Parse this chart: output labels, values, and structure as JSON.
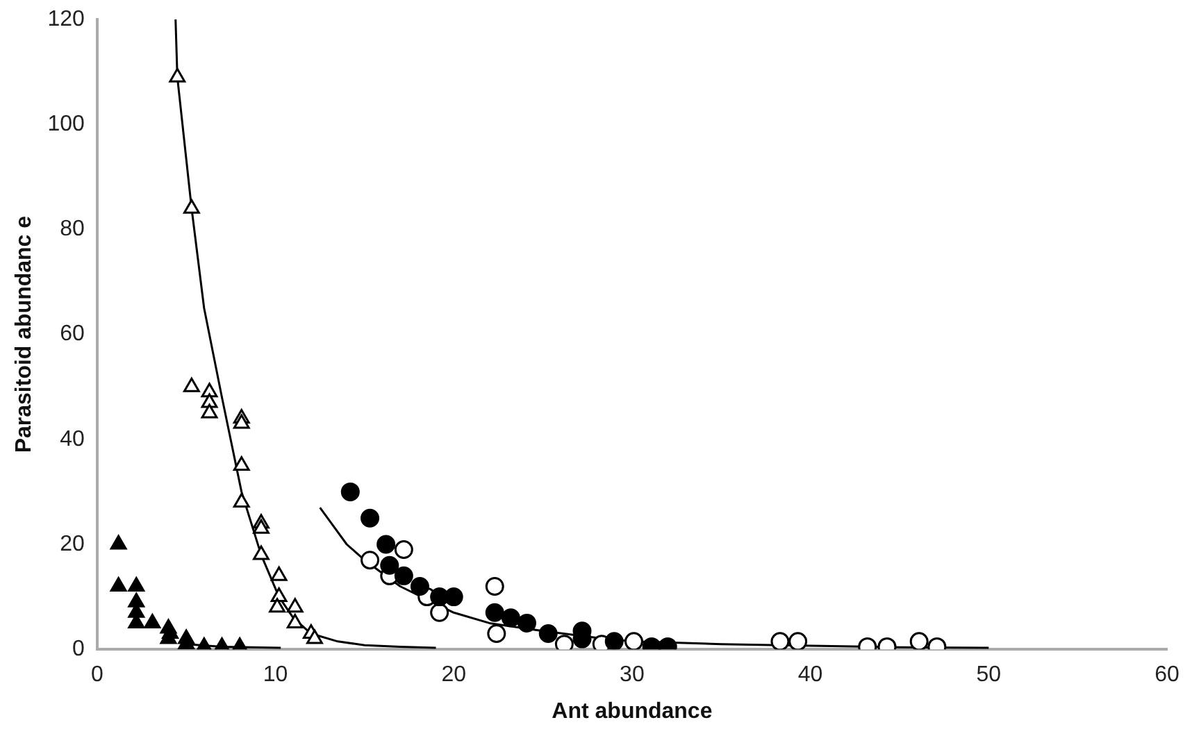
{
  "chart_data": {
    "type": "scatter",
    "xlabel": "Ant abundance",
    "ylabel": "Parasitoid abundanc e",
    "xlim": [
      0,
      60
    ],
    "xticks": [
      0,
      10,
      20,
      30,
      40,
      50,
      60
    ],
    "ylim": [
      0,
      120
    ],
    "yticks": [
      0,
      20,
      40,
      60,
      80,
      100,
      120
    ],
    "grid": false,
    "legend": false,
    "series": [
      {
        "type": "scatter",
        "marker": "triangle",
        "color": "#ffffff",
        "x": [
          4.5,
          5.3,
          5.3,
          6.3,
          6.3,
          6.3,
          8.1,
          8.1,
          8.1,
          8.1,
          9.2,
          9.2,
          9.2,
          10.2,
          10.2,
          10.1,
          11.1,
          11.1,
          12,
          12.2
        ],
        "values": [
          109,
          84,
          50,
          49,
          47,
          45,
          44,
          43,
          35,
          28,
          24,
          23,
          18,
          14,
          10,
          8,
          8,
          5,
          3,
          2
        ]
      },
      {
        "type": "scatter",
        "marker": "triangle",
        "color": "#000000",
        "x": [
          1.2,
          1.2,
          2.2,
          2.2,
          2.2,
          2.2,
          3.1,
          4,
          4,
          4.1,
          5,
          5,
          6,
          7,
          8
        ],
        "values": [
          20,
          12,
          12,
          9,
          7,
          5,
          5,
          4,
          2,
          3,
          1,
          2,
          0.5,
          0.5,
          0.5
        ]
      },
      {
        "type": "scatter",
        "marker": "circle",
        "color": "#000000",
        "x": [
          14.2,
          15.3,
          16.2,
          16.4,
          17.2,
          18.1,
          19.2,
          20,
          22.3,
          23.2,
          24.1,
          25.3,
          27.2,
          27.2,
          29,
          31.1,
          32
        ],
        "values": [
          30,
          25,
          20,
          16,
          14,
          12,
          10,
          10,
          7,
          6,
          5,
          3,
          3.5,
          2,
          1.5,
          0.5,
          0.5
        ]
      },
      {
        "type": "scatter",
        "marker": "circle",
        "color": "#ffffff",
        "x": [
          15.3,
          16.4,
          17.2,
          18.5,
          19.2,
          22.3,
          22.4,
          26.2,
          28.3,
          30.1,
          38.3,
          39.3,
          43.2,
          44.3,
          46.1,
          47.1
        ],
        "values": [
          17,
          14,
          19,
          10,
          7,
          12,
          3,
          1,
          1,
          1.5,
          1.5,
          1.5,
          0.5,
          0.5,
          1.5,
          0.5
        ]
      },
      {
        "type": "line",
        "marker": "none",
        "color": "#000000",
        "x": [
          4.4,
          4.5,
          5.3,
          6,
          7,
          8.1,
          9.2,
          10.2,
          11,
          12,
          13.5,
          15,
          17,
          19
        ],
        "values": [
          120,
          109,
          84,
          65,
          48,
          30,
          18,
          10,
          6,
          3,
          1.5,
          0.8,
          0.5,
          0.3
        ]
      },
      {
        "type": "line",
        "marker": "none",
        "color": "#000000",
        "x": [
          5,
          7,
          10.3
        ],
        "values": [
          1,
          0.5,
          0.3
        ]
      },
      {
        "type": "line",
        "marker": "none",
        "color": "#000000",
        "x": [
          12.5,
          14,
          15,
          17,
          20,
          22,
          25,
          28,
          30,
          35,
          40,
          45,
          50
        ],
        "values": [
          27,
          20,
          17,
          12,
          7,
          5,
          3.5,
          2.2,
          1.5,
          1,
          0.7,
          0.4,
          0.3
        ]
      }
    ]
  }
}
